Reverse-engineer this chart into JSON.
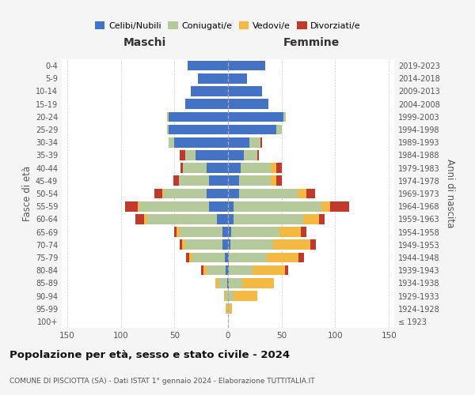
{
  "age_groups": [
    "100+",
    "95-99",
    "90-94",
    "85-89",
    "80-84",
    "75-79",
    "70-74",
    "65-69",
    "60-64",
    "55-59",
    "50-54",
    "45-49",
    "40-44",
    "35-39",
    "30-34",
    "25-29",
    "20-24",
    "15-19",
    "10-14",
    "5-9",
    "0-4"
  ],
  "birth_years": [
    "≤ 1923",
    "1924-1928",
    "1929-1933",
    "1934-1938",
    "1939-1943",
    "1944-1948",
    "1949-1953",
    "1954-1958",
    "1959-1963",
    "1964-1968",
    "1969-1973",
    "1974-1978",
    "1979-1983",
    "1984-1988",
    "1989-1993",
    "1994-1998",
    "1999-2003",
    "2004-2008",
    "2009-2013",
    "2014-2018",
    "2019-2023"
  ],
  "colors": {
    "celibe": "#4472c4",
    "coniugato": "#b5c99a",
    "vedovo": "#f4b942",
    "divorziato": "#c0392b"
  },
  "maschi": {
    "celibe": [
      0,
      0,
      0,
      1,
      2,
      3,
      5,
      5,
      10,
      18,
      20,
      18,
      20,
      30,
      50,
      55,
      55,
      40,
      35,
      28,
      38
    ],
    "coniugato": [
      0,
      1,
      2,
      8,
      18,
      30,
      35,
      40,
      65,
      65,
      40,
      28,
      22,
      10,
      5,
      2,
      1,
      0,
      0,
      0,
      0
    ],
    "vedovo": [
      0,
      1,
      2,
      3,
      3,
      3,
      3,
      3,
      3,
      1,
      1,
      0,
      0,
      0,
      0,
      0,
      1,
      0,
      0,
      0,
      0
    ],
    "divorziato": [
      0,
      0,
      0,
      0,
      2,
      3,
      2,
      2,
      8,
      12,
      8,
      5,
      2,
      5,
      0,
      0,
      0,
      0,
      0,
      0,
      0
    ]
  },
  "femmine": {
    "nubile": [
      0,
      0,
      0,
      1,
      1,
      1,
      2,
      3,
      5,
      5,
      10,
      10,
      12,
      15,
      20,
      45,
      52,
      38,
      32,
      18,
      35
    ],
    "coniugata": [
      0,
      1,
      5,
      12,
      22,
      35,
      40,
      45,
      65,
      82,
      55,
      30,
      28,
      12,
      10,
      5,
      2,
      0,
      0,
      0,
      0
    ],
    "vedova": [
      0,
      3,
      22,
      30,
      30,
      30,
      35,
      20,
      15,
      8,
      8,
      5,
      5,
      0,
      0,
      0,
      0,
      0,
      0,
      0,
      0
    ],
    "divorziata": [
      0,
      0,
      0,
      0,
      3,
      5,
      5,
      5,
      5,
      18,
      8,
      5,
      5,
      2,
      2,
      0,
      0,
      0,
      0,
      0,
      0
    ]
  },
  "title": "Popolazione per età, sesso e stato civile - 2024",
  "subtitle": "COMUNE DI PISCIOTTA (SA) - Dati ISTAT 1° gennaio 2024 - Elaborazione TUTTITALIA.IT",
  "ylabel_left": "Fasce di età",
  "ylabel_right": "Anni di nascita",
  "xlabel_maschi": "Maschi",
  "xlabel_femmine": "Femmine",
  "xlim": 155,
  "background_color": "#f5f5f5",
  "plot_bg": "#ffffff",
  "grid_color": "#cccccc"
}
